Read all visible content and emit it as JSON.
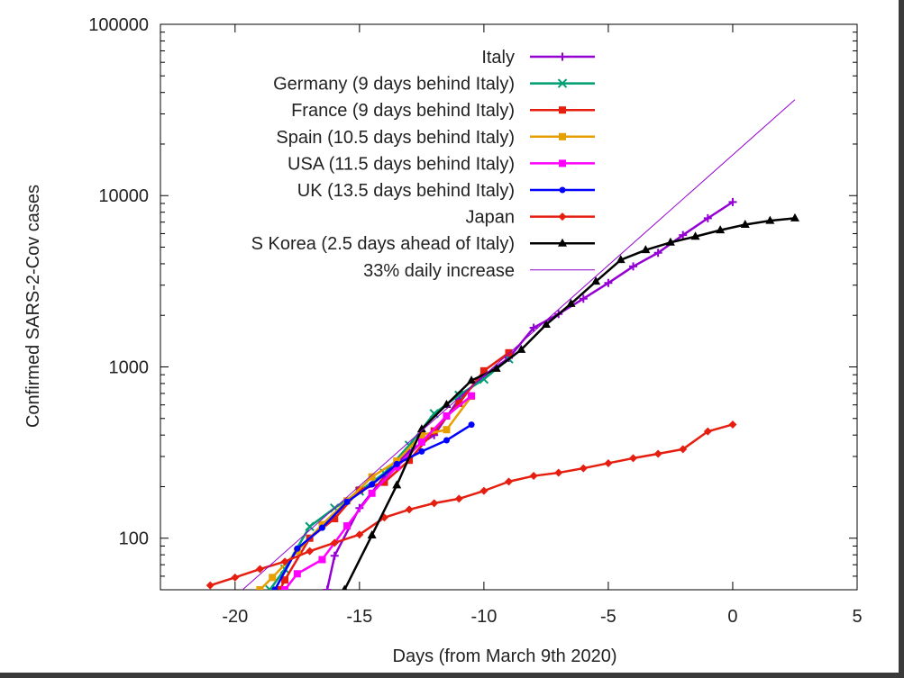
{
  "chart_data": {
    "type": "line",
    "title": "",
    "xlabel": "Days (from March 9th 2020)",
    "ylabel": "Confirmed SARS-2-Cov cases",
    "xlim": [
      -23,
      5
    ],
    "ylim": [
      50,
      100000
    ],
    "yscale": "log",
    "grid": false,
    "legend_position": "top-right",
    "x_ticks": [
      {
        "value": -20,
        "label": "-20"
      },
      {
        "value": -15,
        "label": "-15"
      },
      {
        "value": -10,
        "label": "-10"
      },
      {
        "value": -5,
        "label": "-5"
      },
      {
        "value": 0,
        "label": "0"
      },
      {
        "value": 5,
        "label": "5"
      }
    ],
    "y_ticks": [
      {
        "value": 100,
        "label": "100"
      },
      {
        "value": 1000,
        "label": "1000"
      },
      {
        "value": 10000,
        "label": "10000"
      },
      {
        "value": 100000,
        "label": "100000"
      }
    ],
    "series": [
      {
        "name": "Italy",
        "color": "#9400d3",
        "marker": "plus",
        "points": [
          [
            -16.3,
            50
          ],
          [
            -16,
            79
          ],
          [
            -15,
            150
          ],
          [
            -14,
            229
          ],
          [
            -13,
            322
          ],
          [
            -12,
            400
          ],
          [
            -11,
            650
          ],
          [
            -10,
            888
          ],
          [
            -9,
            1128
          ],
          [
            -8,
            1694
          ],
          [
            -7,
            2036
          ],
          [
            -6,
            2502
          ],
          [
            -5,
            3089
          ],
          [
            -4,
            3858
          ],
          [
            -3,
            4636
          ],
          [
            -2,
            5883
          ],
          [
            -1,
            7375
          ],
          [
            0,
            9172
          ]
        ]
      },
      {
        "name": "Germany (9 days behind Italy)",
        "color": "#009e73",
        "marker": "x",
        "points": [
          [
            -18.6,
            50
          ],
          [
            -18,
            66
          ],
          [
            -17,
            117
          ],
          [
            -16,
            150
          ],
          [
            -15,
            188
          ],
          [
            -14,
            240
          ],
          [
            -13,
            349
          ],
          [
            -12,
            534
          ],
          [
            -11,
            684
          ],
          [
            -10,
            847
          ],
          [
            -9,
            1112
          ]
        ]
      },
      {
        "name": "France (9 days behind Italy)",
        "color": "#e51e10",
        "marker": "square",
        "points": [
          [
            -18.2,
            50
          ],
          [
            -18,
            57
          ],
          [
            -17,
            100
          ],
          [
            -16,
            130
          ],
          [
            -15,
            191
          ],
          [
            -14,
            212
          ],
          [
            -13,
            285
          ],
          [
            -12,
            423
          ],
          [
            -11,
            613
          ],
          [
            -10,
            949
          ],
          [
            -9,
            1209
          ]
        ]
      },
      {
        "name": "Spain (10.5 days behind Italy)",
        "color": "#e69f00",
        "marker": "square",
        "points": [
          [
            -19.0,
            50
          ],
          [
            -18.5,
            59
          ],
          [
            -17.5,
            84
          ],
          [
            -16.5,
            120
          ],
          [
            -15.5,
            165
          ],
          [
            -14.5,
            228
          ],
          [
            -13.5,
            282
          ],
          [
            -12.5,
            401
          ],
          [
            -11.5,
            430
          ],
          [
            -10.5,
            674
          ]
        ]
      },
      {
        "name": "USA (11.5 days behind Italy)",
        "color": "#ff00ff",
        "marker": "square",
        "points": [
          [
            -18.0,
            50
          ],
          [
            -17.5,
            62
          ],
          [
            -16.5,
            75
          ],
          [
            -15.5,
            118
          ],
          [
            -14.5,
            183
          ],
          [
            -13.5,
            261
          ],
          [
            -12.5,
            364
          ],
          [
            -11.5,
            517
          ],
          [
            -10.5,
            678
          ]
        ]
      },
      {
        "name": "UK (13.5 days behind Italy)",
        "color": "#0000ff",
        "marker": "circle",
        "points": [
          [
            -18.4,
            50
          ],
          [
            -17.5,
            87
          ],
          [
            -16.5,
            115
          ],
          [
            -15.5,
            163
          ],
          [
            -14.5,
            206
          ],
          [
            -13.5,
            271
          ],
          [
            -12.5,
            321
          ],
          [
            -11.5,
            373
          ],
          [
            -10.5,
            460
          ]
        ]
      },
      {
        "name": "Japan",
        "color": "#e51e10",
        "marker": "diamond",
        "points": [
          [
            -21,
            53
          ],
          [
            -20,
            59
          ],
          [
            -19,
            66
          ],
          [
            -18,
            73
          ],
          [
            -17,
            84
          ],
          [
            -16,
            94
          ],
          [
            -15,
            105
          ],
          [
            -14,
            132
          ],
          [
            -13,
            147
          ],
          [
            -12,
            160
          ],
          [
            -11,
            170
          ],
          [
            -10,
            189
          ],
          [
            -9,
            214
          ],
          [
            -8,
            231
          ],
          [
            -7,
            241
          ],
          [
            -6,
            256
          ],
          [
            -5,
            274
          ],
          [
            -4,
            293
          ],
          [
            -3,
            311
          ],
          [
            -2,
            331
          ],
          [
            -1,
            420
          ],
          [
            0,
            461
          ]
        ]
      },
      {
        "name": "S Korea (2.5 days ahead of Italy)",
        "color": "#000000",
        "marker": "triangle",
        "points": [
          [
            -15.6,
            50
          ],
          [
            -14.5,
            104
          ],
          [
            -13.5,
            204
          ],
          [
            -12.5,
            433
          ],
          [
            -11.5,
            602
          ],
          [
            -10.5,
            833
          ],
          [
            -9.5,
            977
          ],
          [
            -8.5,
            1261
          ],
          [
            -7.5,
            1766
          ],
          [
            -6.5,
            2337
          ],
          [
            -5.5,
            3150
          ],
          [
            -4.5,
            4212
          ],
          [
            -3.5,
            4812
          ],
          [
            -2.5,
            5328
          ],
          [
            -1.5,
            5766
          ],
          [
            -0.5,
            6284
          ],
          [
            0.5,
            6767
          ],
          [
            1.5,
            7134
          ],
          [
            2.5,
            7382
          ]
        ]
      },
      {
        "name": "33% daily increase",
        "color": "#9400d3",
        "marker": "none",
        "width": 1,
        "points": [
          [
            -19.7,
            50
          ],
          [
            2.5,
            36300
          ]
        ]
      }
    ]
  }
}
